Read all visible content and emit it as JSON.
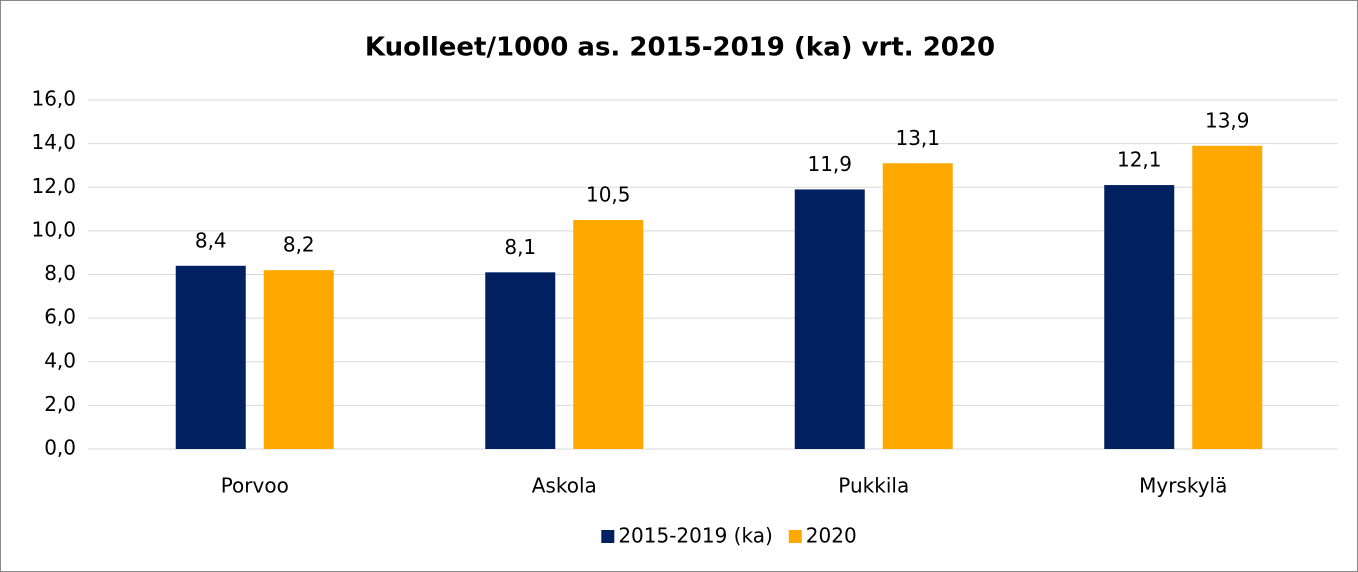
{
  "chart_data": {
    "type": "bar",
    "title": "Kuolleet/1000 as. 2015-2019 (ka) vrt. 2020",
    "categories": [
      "Porvoo",
      "Askola",
      "Pukkila",
      "Myrskylä"
    ],
    "series": [
      {
        "name": "2015-2019 (ka)",
        "color": "#002060",
        "values": [
          8.4,
          8.1,
          11.9,
          12.1
        ],
        "value_labels": [
          "8,4",
          "8,1",
          "11,9",
          "12,1"
        ]
      },
      {
        "name": "2020",
        "color": "#ffa800",
        "values": [
          8.2,
          10.5,
          13.1,
          13.9
        ],
        "value_labels": [
          "8,2",
          "10,5",
          "13,1",
          "13,9"
        ]
      }
    ],
    "ylim": [
      0,
      16
    ],
    "yticks": [
      {
        "value": 0,
        "label": "0,0"
      },
      {
        "value": 2,
        "label": "2,0"
      },
      {
        "value": 4,
        "label": "4,0"
      },
      {
        "value": 6,
        "label": "6,0"
      },
      {
        "value": 8,
        "label": "8,0"
      },
      {
        "value": 10,
        "label": "10,0"
      },
      {
        "value": 12,
        "label": "12,0"
      },
      {
        "value": 14,
        "label": "14,0"
      },
      {
        "value": 16,
        "label": "16,0"
      }
    ],
    "grid": true,
    "legend": "bottom"
  }
}
